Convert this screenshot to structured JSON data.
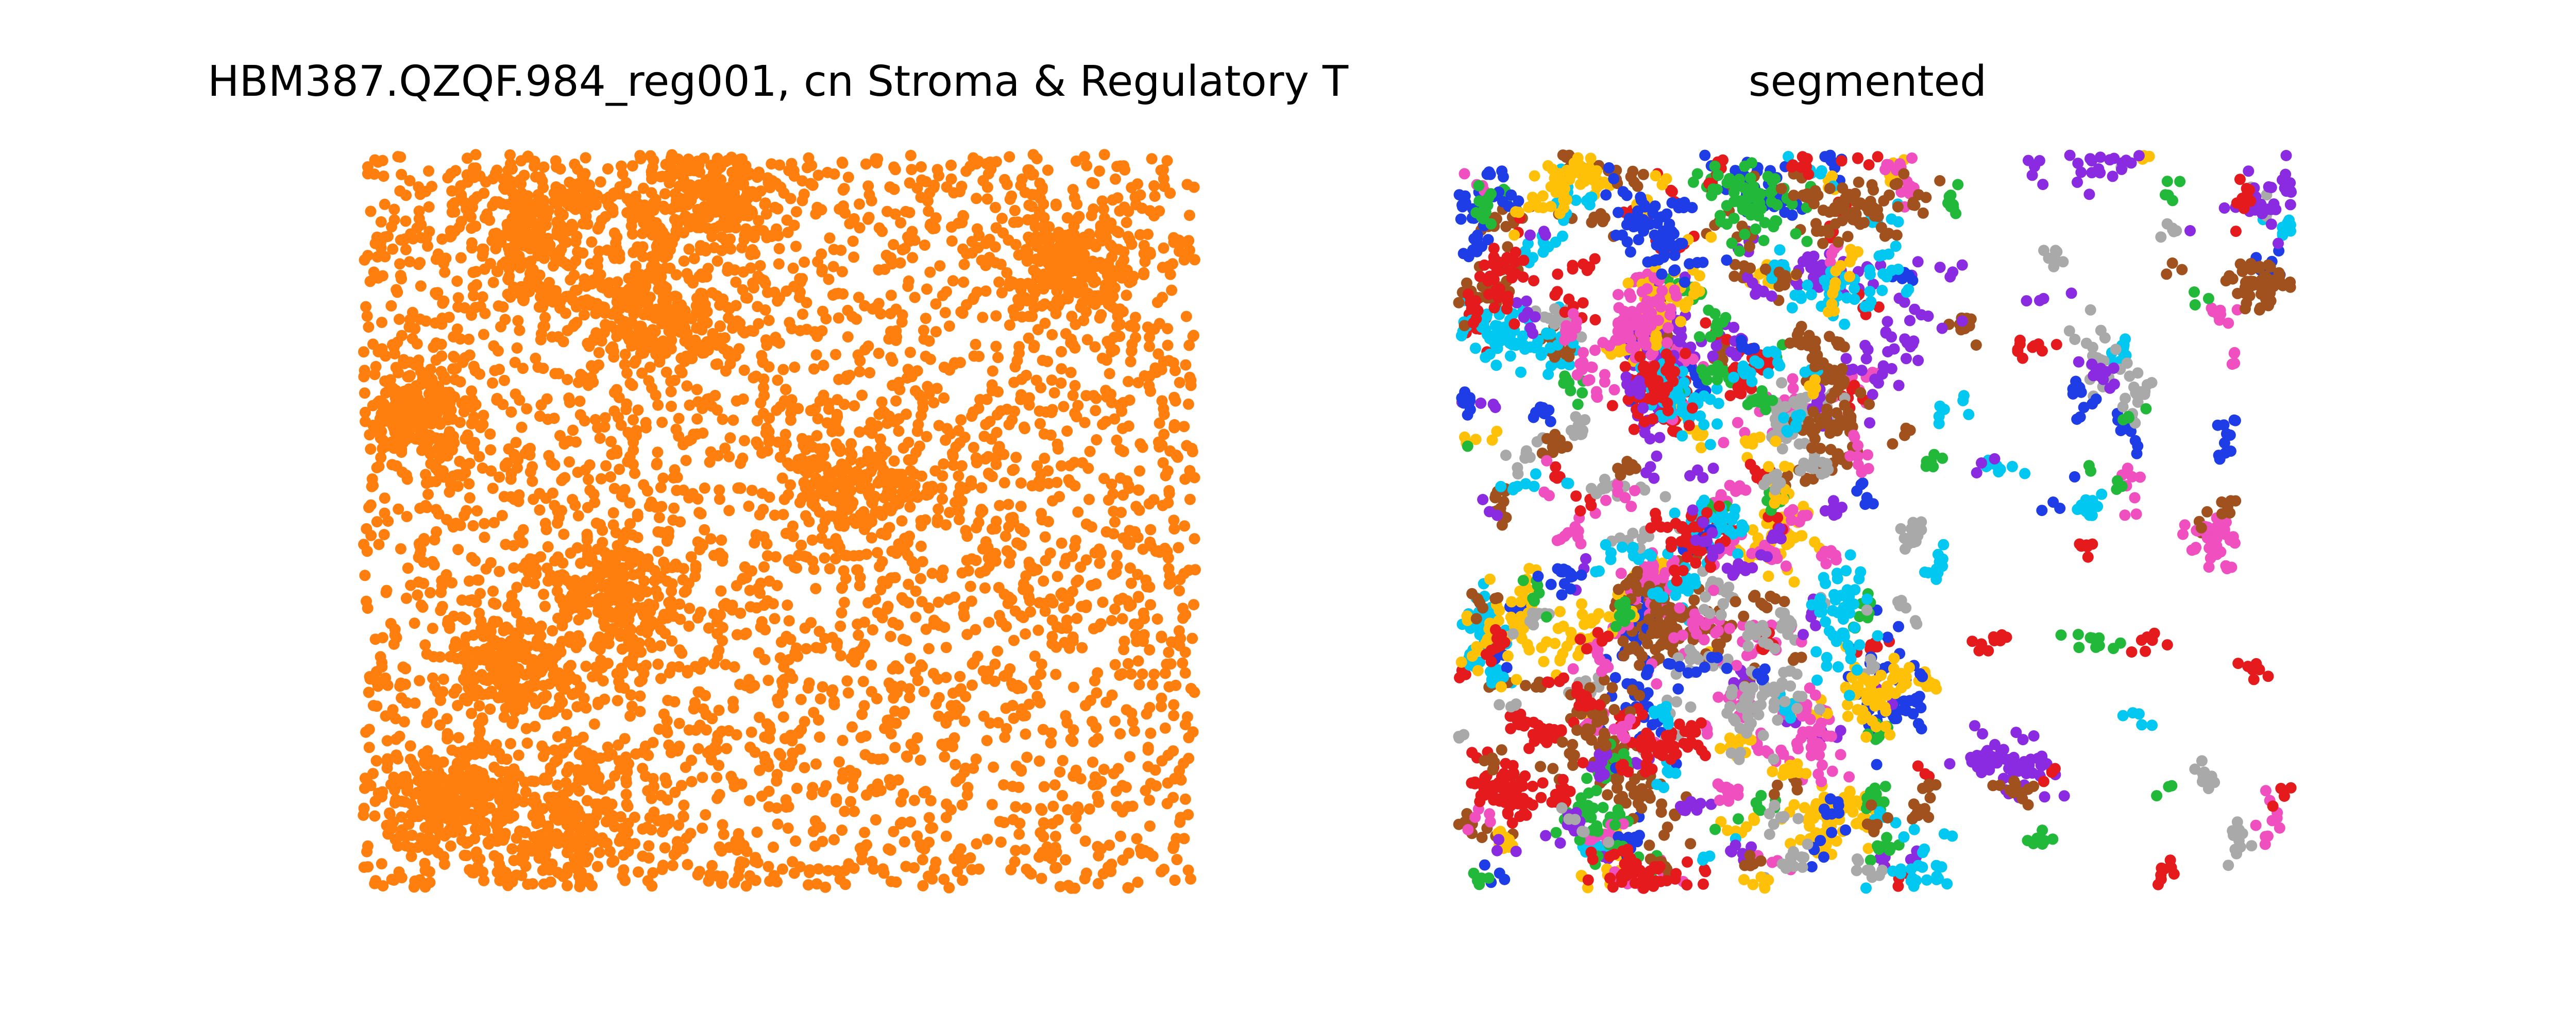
{
  "chart_data": [
    {
      "type": "scatter",
      "title": "HBM387.QZQF.984_reg001, cn Stroma & Regulatory T",
      "axes_visible": false,
      "grid": false,
      "point_color": "#ff7f0e",
      "description_of_data": "dense spatial scatter of cell positions; point count approx",
      "n_points": 5200,
      "dense_regions": [
        {
          "cx": 0.24,
          "cy": 0.9,
          "r": 0.1
        },
        {
          "cx": 0.36,
          "cy": 0.22,
          "r": 0.09
        },
        {
          "cx": 0.18,
          "cy": 0.7,
          "r": 0.07
        },
        {
          "cx": 0.3,
          "cy": 0.6,
          "r": 0.08
        },
        {
          "cx": 0.2,
          "cy": 0.1,
          "r": 0.09
        },
        {
          "cx": 0.6,
          "cy": 0.45,
          "r": 0.1
        },
        {
          "cx": 0.07,
          "cy": 0.35,
          "r": 0.07
        },
        {
          "cx": 0.1,
          "cy": 0.88,
          "r": 0.07
        },
        {
          "cx": 0.85,
          "cy": 0.15,
          "r": 0.07
        },
        {
          "cx": 0.42,
          "cy": 0.05,
          "r": 0.08
        }
      ],
      "sparse_regions": [
        {
          "cx": 0.8,
          "cy": 0.82,
          "r": 0.12
        },
        {
          "cx": 0.62,
          "cy": 0.82,
          "r": 0.07
        }
      ]
    },
    {
      "type": "scatter",
      "title": "segmented",
      "axes_visible": false,
      "grid": false,
      "description_of_data": "same cells shown as segmented clusters, each cluster colored with a categorical palette",
      "palette": [
        "#e41a1c",
        "#1f3de6",
        "#22b93b",
        "#8a2be2",
        "#ffc107",
        "#a0511d",
        "#00c8f0",
        "#f04fbf",
        "#a9a9a9"
      ],
      "n_clusters": 420
    }
  ]
}
